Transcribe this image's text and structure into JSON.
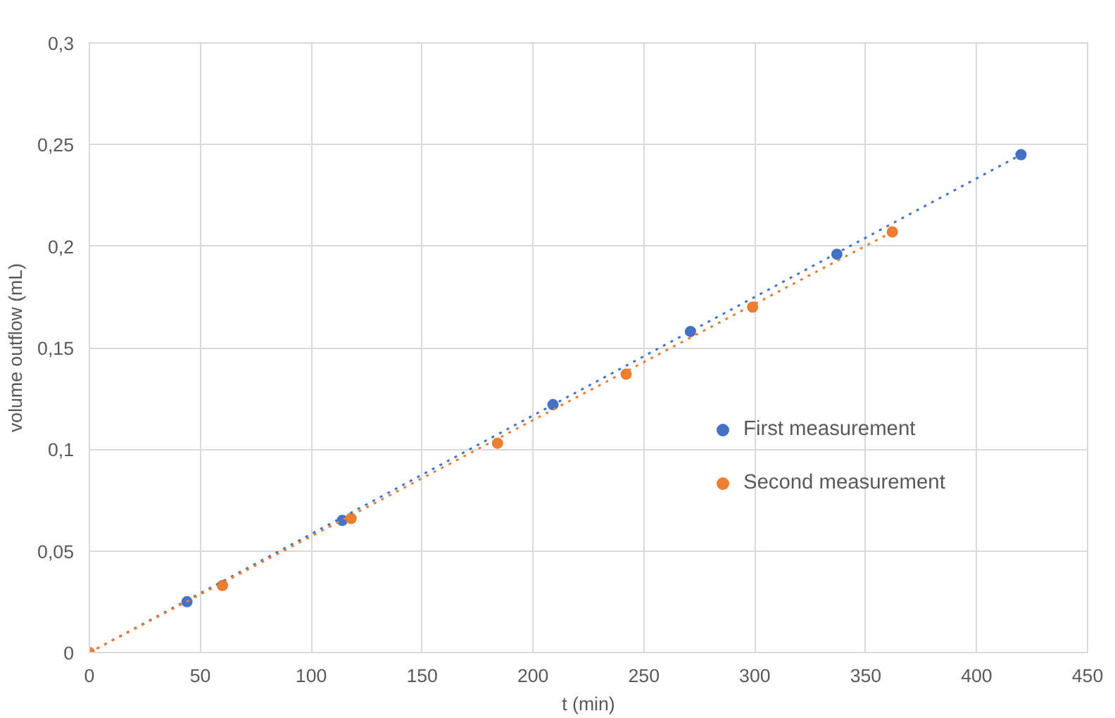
{
  "chart_data": {
    "type": "scatter",
    "xlabel": "t (min)",
    "ylabel": "volume outflow (mL)",
    "xlim": [
      0,
      450
    ],
    "xticks": [
      0,
      50,
      100,
      150,
      200,
      250,
      300,
      350,
      400,
      450
    ],
    "ylim": [
      0,
      0.3
    ],
    "yticks": [
      0,
      {
        "value": 0.05,
        "label": "0,05"
      },
      {
        "value": 0.1,
        "label": "0,1"
      },
      {
        "value": 0.15,
        "label": "0,15"
      },
      {
        "value": 0.2,
        "label": "0,2"
      },
      {
        "value": 0.25,
        "label": "0,25"
      },
      {
        "value": 0.3,
        "label": "0,3"
      }
    ],
    "grid": true,
    "legend": "right",
    "series": [
      {
        "name": "First measurement",
        "color": "#4472c4",
        "marker": "circle",
        "x": [
          44,
          114,
          209,
          271,
          337,
          420
        ],
        "values": [
          0.025,
          0.065,
          0.122,
          0.158,
          0.196,
          0.245
        ]
      },
      {
        "name": "Second measurement",
        "color": "#ed7d31",
        "marker": "circle",
        "x": [
          0,
          60,
          118,
          184,
          242,
          299,
          362
        ],
        "values": [
          0,
          0.033,
          0.066,
          0.103,
          0.137,
          0.17,
          0.207
        ]
      },
      {
        "type": "line",
        "line_style": "dotted",
        "marker": "none",
        "color": "#4472c4",
        "x": [
          0,
          420
        ],
        "values": [
          0,
          0.245
        ]
      },
      {
        "type": "line",
        "line_style": "dotted",
        "marker": "none",
        "color": "#ed7d31",
        "x": [
          0,
          362
        ],
        "values": [
          0,
          0.207
        ]
      }
    ]
  }
}
